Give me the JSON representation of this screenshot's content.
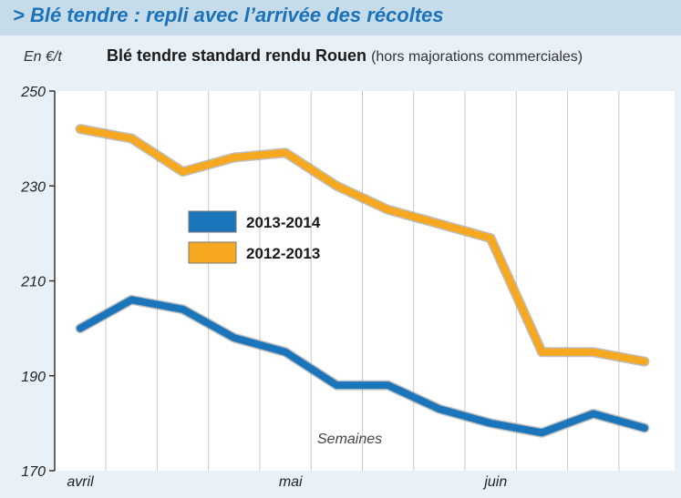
{
  "header": {
    "title": "> Blé tendre : repli avec l’arrivée des récoltes"
  },
  "chart_data": {
    "type": "line",
    "unit": "En €/t",
    "title": "Blé tendre standard rendu Rouen",
    "subtitle": "(hors majorations commerciales)",
    "xlabel": "Semaines",
    "month_labels": [
      "avril",
      "mai",
      "juin"
    ],
    "ylim": [
      170,
      250
    ],
    "yticks": [
      170,
      190,
      210,
      230,
      250
    ],
    "grid": "vertical",
    "legend_placement": "center-left",
    "series": [
      {
        "name": "2013-2014",
        "color": "#1b75bb",
        "values": [
          200,
          206,
          204,
          198,
          195,
          188,
          188,
          183,
          180,
          178,
          182,
          179
        ]
      },
      {
        "name": "2012-2013",
        "color": "#f5a820",
        "values": [
          242,
          240,
          233,
          236,
          237,
          230,
          225,
          222,
          219,
          195,
          195,
          193
        ]
      }
    ]
  }
}
